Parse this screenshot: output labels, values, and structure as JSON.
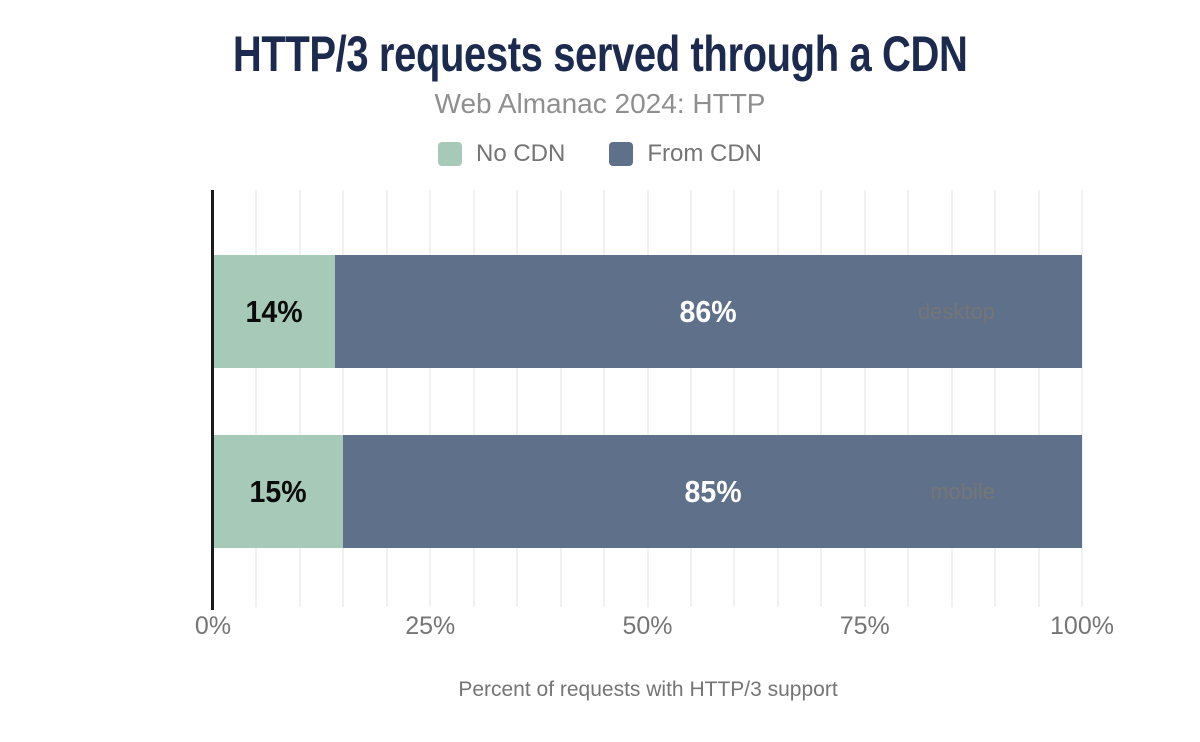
{
  "colors": {
    "title": "#1b2a4e",
    "subtitle_gray": "#8f8f8f",
    "text_gray": "#757575",
    "no_cdn_green": "#a6cab7",
    "from_cdn_slate": "#5f718a",
    "grid": "#f1f1f1",
    "axis": "#1a1a1a",
    "background": "#ffffff"
  },
  "chart_data": {
    "type": "bar",
    "orientation": "horizontal",
    "stacked": true,
    "title": "HTTP/3 requests served through a CDN",
    "subtitle": "Web Almanac 2024: HTTP",
    "xlabel": "Percent of requests with HTTP/3 support",
    "categories": [
      "desktop",
      "mobile"
    ],
    "series": [
      {
        "name": "No CDN",
        "values": [
          14,
          15
        ],
        "color": "#a6cab7",
        "label_color": "#0b0b0b"
      },
      {
        "name": "From CDN",
        "values": [
          86,
          85
        ],
        "color": "#5f718a",
        "label_color": "#ffffff"
      }
    ],
    "value_suffix": "%",
    "xlim": [
      0,
      100
    ],
    "xticks": [
      {
        "value": 0,
        "label": "0%"
      },
      {
        "value": 25,
        "label": "25%"
      },
      {
        "value": 50,
        "label": "50%"
      },
      {
        "value": 75,
        "label": "75%"
      },
      {
        "value": 100,
        "label": "100%"
      }
    ],
    "grid_step_percent": 5,
    "grid_on": true,
    "legend_position": "top"
  }
}
